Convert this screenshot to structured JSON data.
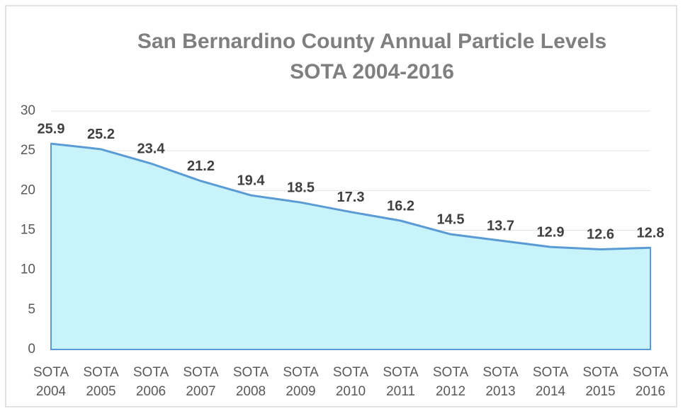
{
  "chart_data": {
    "type": "area",
    "title": "San Bernardino County Annual Particle Levels",
    "subtitle": "SOTA 2004-2016",
    "categories": [
      "SOTA 2004",
      "SOTA 2005",
      "SOTA 2006",
      "SOTA 2007",
      "SOTA 2008",
      "SOTA 2009",
      "SOTA 2010",
      "SOTA 2011",
      "SOTA 2012",
      "SOTA 2013",
      "SOTA 2014",
      "SOTA 2015",
      "SOTA 2016"
    ],
    "values": [
      25.9,
      25.2,
      23.4,
      21.2,
      19.4,
      18.5,
      17.3,
      16.2,
      14.5,
      13.7,
      12.9,
      12.6,
      12.8
    ],
    "color": "#5b9bd5",
    "fill": "#c9f3fb",
    "ylim": [
      0,
      30
    ],
    "yticks": [
      0,
      5,
      10,
      15,
      20,
      25,
      30
    ],
    "grid": true
  }
}
